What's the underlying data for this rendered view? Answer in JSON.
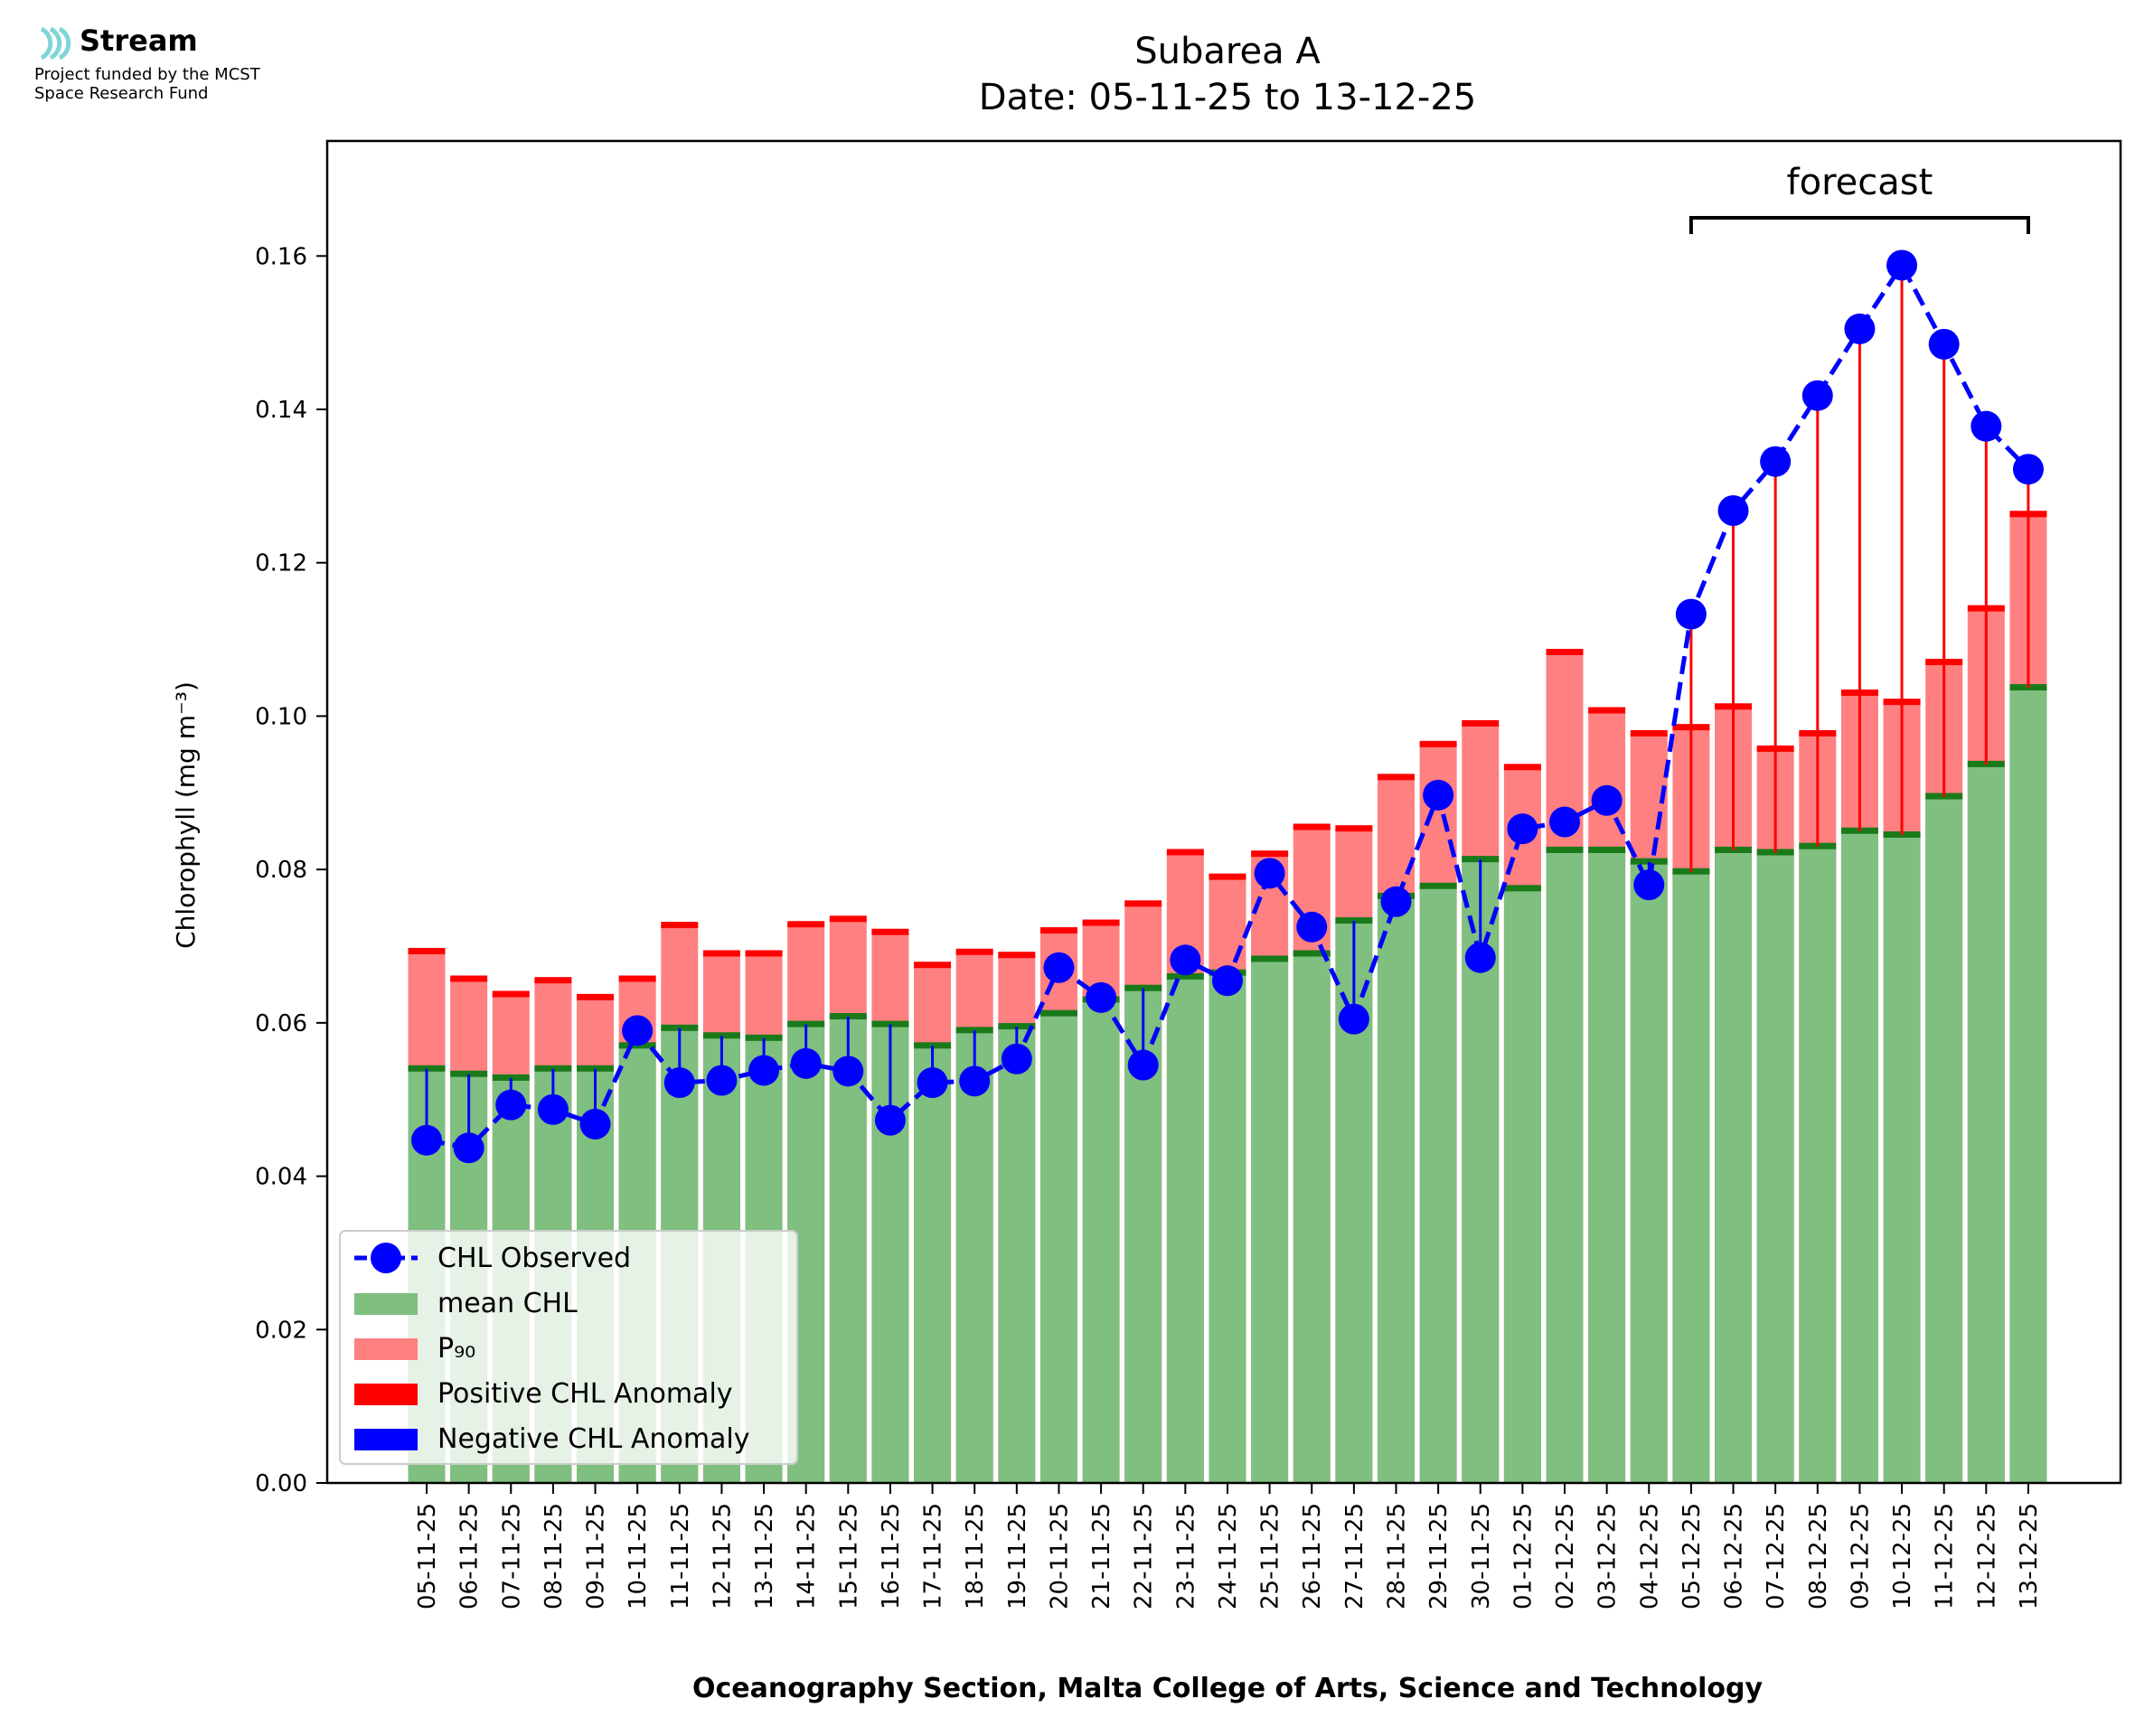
{
  "logo": {
    "name": "Stream",
    "line1": "Project funded by the MCST",
    "line2": "Space Research Fund",
    "icon": "stream-wave-icon",
    "color": "#7fd6d6"
  },
  "chart_data": {
    "type": "bar",
    "title": "Subarea A",
    "subtitle": "Date: 05-11-25 to 13-12-25",
    "ylabel": "Chlorophyll (mg m⁻³)",
    "xlabel": "Oceanography Section, Malta College of Arts, Science and Technology",
    "ylim": [
      0,
      0.175
    ],
    "yticks": [
      0.0,
      0.02,
      0.04,
      0.06,
      0.08,
      0.1,
      0.12,
      0.14,
      0.16
    ],
    "ytick_labels": [
      "0.00",
      "0.02",
      "0.04",
      "0.06",
      "0.08",
      "0.10",
      "0.12",
      "0.14",
      "0.16"
    ],
    "categories": [
      "05-11-25",
      "06-11-25",
      "07-11-25",
      "08-11-25",
      "09-11-25",
      "10-11-25",
      "11-11-25",
      "12-11-25",
      "13-11-25",
      "14-11-25",
      "15-11-25",
      "16-11-25",
      "17-11-25",
      "18-11-25",
      "19-11-25",
      "20-11-25",
      "21-11-25",
      "22-11-25",
      "23-11-25",
      "24-11-25",
      "25-11-25",
      "26-11-25",
      "27-11-25",
      "28-11-25",
      "29-11-25",
      "30-11-25",
      "01-12-25",
      "02-12-25",
      "03-12-25",
      "04-12-25",
      "05-12-25",
      "06-12-25",
      "07-12-25",
      "08-12-25",
      "09-12-25",
      "10-12-25",
      "11-12-25",
      "12-12-25",
      "13-12-25"
    ],
    "series": [
      {
        "name": "mean CHL",
        "color": "#7fbf7f",
        "values": [
          0.054,
          0.0533,
          0.0528,
          0.054,
          0.054,
          0.057,
          0.0593,
          0.0583,
          0.058,
          0.0598,
          0.0608,
          0.0598,
          0.057,
          0.059,
          0.0595,
          0.0612,
          0.063,
          0.0645,
          0.066,
          0.0665,
          0.0683,
          0.069,
          0.0733,
          0.0765,
          0.0778,
          0.0813,
          0.0775,
          0.0825,
          0.0825,
          0.081,
          0.0797,
          0.0825,
          0.0822,
          0.083,
          0.085,
          0.0845,
          0.0895,
          0.0937,
          0.1037
        ]
      },
      {
        "name": "P₉₀",
        "color": "#ff8080",
        "values": [
          0.0693,
          0.0657,
          0.0637,
          0.0655,
          0.0633,
          0.0657,
          0.0727,
          0.069,
          0.069,
          0.0728,
          0.0735,
          0.0718,
          0.0675,
          0.0692,
          0.0688,
          0.072,
          0.073,
          0.0755,
          0.0822,
          0.079,
          0.082,
          0.0855,
          0.0853,
          0.092,
          0.0963,
          0.099,
          0.0933,
          0.1083,
          0.1007,
          0.0977,
          0.0985,
          0.1012,
          0.0957,
          0.0977,
          0.103,
          0.1018,
          0.107,
          0.114,
          0.1263
        ]
      },
      {
        "name": "CHL Observed",
        "color": "#0000ff",
        "values": [
          0.0447,
          0.0437,
          0.0493,
          0.0487,
          0.0468,
          0.059,
          0.0522,
          0.0525,
          0.0538,
          0.0547,
          0.0537,
          0.0473,
          0.0522,
          0.0524,
          0.0553,
          0.0672,
          0.0633,
          0.0545,
          0.0682,
          0.0655,
          0.0795,
          0.0725,
          0.0605,
          0.0758,
          0.0897,
          0.0685,
          0.0853,
          0.0862,
          0.089,
          0.078,
          0.1133,
          0.1268,
          0.1332,
          0.1418,
          0.1505,
          0.1588,
          0.1485,
          0.1378,
          0.1322
        ]
      }
    ],
    "anomaly_colors": {
      "positive": "#ff0000",
      "negative": "#0000ff"
    },
    "mean_marker_color": "#1a7a1a",
    "forecast": {
      "label": "forecast",
      "from": "05-12-25",
      "to": "13-12-25"
    },
    "legend": {
      "position": "lower-left",
      "entries": [
        {
          "label": "CHL Observed",
          "kind": "line-marker",
          "color": "#0000ff"
        },
        {
          "label": "mean CHL",
          "kind": "patch",
          "color": "#7fbf7f"
        },
        {
          "label": "P₉₀",
          "kind": "patch",
          "color": "#ff8080"
        },
        {
          "label": "Positive CHL Anomaly",
          "kind": "patch",
          "color": "#ff0000"
        },
        {
          "label": "Negative CHL Anomaly",
          "kind": "patch",
          "color": "#0000ff"
        }
      ]
    },
    "grid": false
  }
}
